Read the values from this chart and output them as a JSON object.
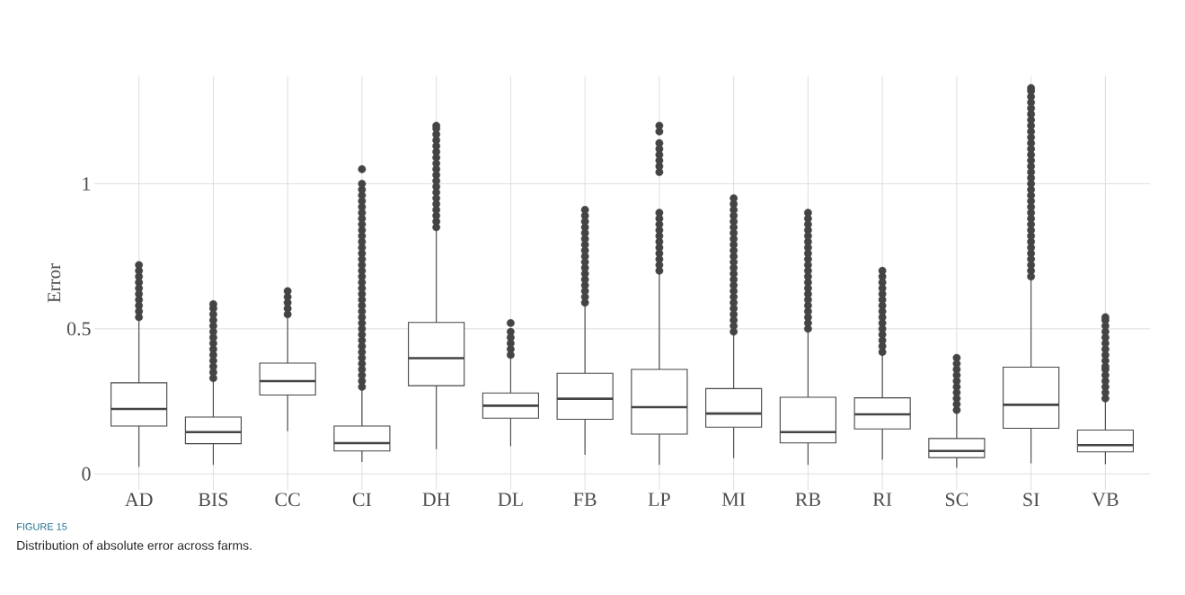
{
  "chart_data": {
    "type": "box",
    "ylabel": "Error",
    "annotations": [
      "FIGURE 15",
      "Distribution of absolute error across farms."
    ],
    "categories": [
      "AD",
      "BIS",
      "CC",
      "CI",
      "DH",
      "DL",
      "FB",
      "LP",
      "MI",
      "RB",
      "RI",
      "SC",
      "SI",
      "VB"
    ],
    "ylim": [
      -0.055,
      1.37
    ],
    "yticks": [
      0,
      0.5,
      1
    ],
    "grid": true,
    "marker": "circle",
    "series": [
      {
        "color": "#444444",
        "boxes": [
          {
            "low": 0.024,
            "q1": 0.165,
            "median": 0.224,
            "q3": 0.314,
            "high": 0.53,
            "outliers": [
              0.54,
              0.56,
              0.58,
              0.6,
              0.62,
              0.64,
              0.66,
              0.68,
              0.7,
              0.72
            ]
          },
          {
            "low": 0.031,
            "q1": 0.104,
            "median": 0.144,
            "q3": 0.196,
            "high": 0.323,
            "outliers": [
              0.33,
              0.35,
              0.37,
              0.39,
              0.41,
              0.43,
              0.45,
              0.47,
              0.49,
              0.51,
              0.53,
              0.55,
              0.57,
              0.585
            ]
          },
          {
            "low": 0.147,
            "q1": 0.272,
            "median": 0.32,
            "q3": 0.382,
            "high": 0.545,
            "outliers": [
              0.55,
              0.57,
              0.59,
              0.61,
              0.63
            ]
          },
          {
            "low": 0.041,
            "q1": 0.079,
            "median": 0.106,
            "q3": 0.165,
            "high": 0.293,
            "outliers": [
              0.3,
              0.32,
              0.34,
              0.36,
              0.38,
              0.4,
              0.42,
              0.44,
              0.46,
              0.48,
              0.5,
              0.52,
              0.54,
              0.56,
              0.58,
              0.6,
              0.62,
              0.64,
              0.66,
              0.68,
              0.7,
              0.72,
              0.74,
              0.76,
              0.78,
              0.8,
              0.82,
              0.84,
              0.86,
              0.88,
              0.9,
              0.92,
              0.94,
              0.96,
              0.98,
              1.0,
              1.05
            ]
          },
          {
            "low": 0.085,
            "q1": 0.304,
            "median": 0.399,
            "q3": 0.522,
            "high": 0.837,
            "outliers": [
              0.85,
              0.87,
              0.89,
              0.91,
              0.93,
              0.95,
              0.97,
              0.99,
              1.01,
              1.03,
              1.05,
              1.07,
              1.09,
              1.11,
              1.13,
              1.15,
              1.17,
              1.19,
              1.2
            ]
          },
          {
            "low": 0.095,
            "q1": 0.192,
            "median": 0.235,
            "q3": 0.279,
            "high": 0.399,
            "outliers": [
              0.41,
              0.43,
              0.45,
              0.47,
              0.49,
              0.52
            ]
          },
          {
            "low": 0.066,
            "q1": 0.188,
            "median": 0.259,
            "q3": 0.347,
            "high": 0.58,
            "outliers": [
              0.59,
              0.61,
              0.63,
              0.65,
              0.67,
              0.69,
              0.71,
              0.73,
              0.75,
              0.77,
              0.79,
              0.81,
              0.83,
              0.85,
              0.87,
              0.89,
              0.91
            ]
          },
          {
            "low": 0.031,
            "q1": 0.137,
            "median": 0.23,
            "q3": 0.36,
            "high": 0.691,
            "outliers": [
              0.7,
              0.72,
              0.74,
              0.76,
              0.78,
              0.8,
              0.82,
              0.84,
              0.86,
              0.88,
              0.9,
              1.04,
              1.06,
              1.08,
              1.1,
              1.12,
              1.14,
              1.18,
              1.2
            ]
          },
          {
            "low": 0.054,
            "q1": 0.161,
            "median": 0.208,
            "q3": 0.294,
            "high": 0.484,
            "outliers": [
              0.49,
              0.51,
              0.53,
              0.55,
              0.57,
              0.59,
              0.61,
              0.63,
              0.65,
              0.67,
              0.69,
              0.71,
              0.73,
              0.75,
              0.77,
              0.79,
              0.81,
              0.83,
              0.85,
              0.87,
              0.89,
              0.91,
              0.93,
              0.95
            ]
          },
          {
            "low": 0.031,
            "q1": 0.107,
            "median": 0.144,
            "q3": 0.264,
            "high": 0.489,
            "outliers": [
              0.5,
              0.52,
              0.54,
              0.56,
              0.58,
              0.6,
              0.62,
              0.64,
              0.66,
              0.68,
              0.7,
              0.72,
              0.74,
              0.76,
              0.78,
              0.8,
              0.82,
              0.84,
              0.86,
              0.88,
              0.9
            ]
          },
          {
            "low": 0.049,
            "q1": 0.155,
            "median": 0.205,
            "q3": 0.262,
            "high": 0.414,
            "outliers": [
              0.42,
              0.44,
              0.46,
              0.48,
              0.5,
              0.52,
              0.54,
              0.56,
              0.58,
              0.6,
              0.62,
              0.64,
              0.66,
              0.68,
              0.7
            ]
          },
          {
            "low": 0.021,
            "q1": 0.056,
            "median": 0.079,
            "q3": 0.122,
            "high": 0.212,
            "outliers": [
              0.22,
              0.24,
              0.26,
              0.28,
              0.3,
              0.32,
              0.34,
              0.36,
              0.38,
              0.4
            ]
          },
          {
            "low": 0.036,
            "q1": 0.157,
            "median": 0.238,
            "q3": 0.368,
            "high": 0.676,
            "outliers": [
              0.68,
              0.7,
              0.72,
              0.74,
              0.76,
              0.78,
              0.8,
              0.82,
              0.84,
              0.86,
              0.88,
              0.9,
              0.92,
              0.94,
              0.96,
              0.98,
              1.0,
              1.02,
              1.04,
              1.06,
              1.08,
              1.1,
              1.12,
              1.14,
              1.16,
              1.18,
              1.2,
              1.22,
              1.24,
              1.26,
              1.28,
              1.3,
              1.32,
              1.33
            ]
          },
          {
            "low": 0.033,
            "q1": 0.076,
            "median": 0.099,
            "q3": 0.151,
            "high": 0.258,
            "outliers": [
              0.26,
              0.28,
              0.3,
              0.32,
              0.34,
              0.36,
              0.37,
              0.39,
              0.41,
              0.43,
              0.45,
              0.47,
              0.49,
              0.51,
              0.53,
              0.54
            ]
          }
        ]
      }
    ]
  }
}
